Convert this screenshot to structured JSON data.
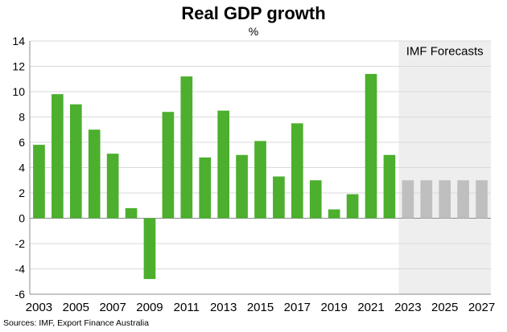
{
  "title": "Real GDP growth",
  "unit": "%",
  "source": "Sources: IMF, Export Finance Australia",
  "forecast_label": "IMF Forecasts",
  "colors": {
    "actual": "#4caf2e",
    "forecast": "#bfbfbf",
    "forecast_bg": "#eeeeee",
    "grid": "#d9d9d9"
  },
  "chart_data": {
    "type": "bar",
    "title": "Real GDP growth",
    "ylabel": "%",
    "xlabel": "",
    "ylim": [
      -6,
      14
    ],
    "yticks": [
      -6,
      -4,
      -2,
      0,
      2,
      4,
      6,
      8,
      10,
      12,
      14
    ],
    "xtick_labels": [
      "2003",
      "2005",
      "2007",
      "2009",
      "2011",
      "2013",
      "2015",
      "2017",
      "2019",
      "2021",
      "2023",
      "2025",
      "2027"
    ],
    "grid": true,
    "categories": [
      "2003",
      "2004",
      "2005",
      "2006",
      "2007",
      "2008",
      "2009",
      "2010",
      "2011",
      "2012",
      "2013",
      "2014",
      "2015",
      "2016",
      "2017",
      "2018",
      "2019",
      "2020",
      "2021",
      "2022",
      "2023",
      "2024",
      "2025",
      "2026",
      "2027"
    ],
    "values": [
      5.8,
      9.8,
      9.0,
      7.0,
      5.1,
      0.8,
      -4.8,
      8.4,
      11.2,
      4.8,
      8.5,
      5.0,
      6.1,
      3.3,
      7.5,
      3.0,
      0.7,
      1.9,
      11.4,
      5.0,
      3.0,
      3.0,
      3.0,
      3.0,
      3.0
    ],
    "forecast_from": "2023",
    "annotations": [
      "IMF Forecasts"
    ]
  }
}
